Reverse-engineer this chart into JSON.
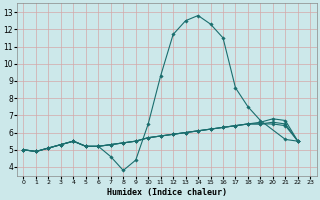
{
  "xlabel": "Humidex (Indice chaleur)",
  "bg_color": "#cce8ea",
  "grid_color_major": "#d4a0a0",
  "grid_color_minor": "#d4c0c0",
  "line_color": "#1a6e6e",
  "x_ticks": [
    0,
    1,
    2,
    3,
    4,
    5,
    6,
    7,
    8,
    9,
    10,
    11,
    12,
    13,
    14,
    15,
    16,
    17,
    18,
    19,
    20,
    21,
    22,
    23
  ],
  "y_ticks": [
    4,
    5,
    6,
    7,
    8,
    9,
    10,
    11,
    12,
    13
  ],
  "xlim": [
    -0.5,
    23.5
  ],
  "ylim": [
    3.5,
    13.5
  ],
  "series": [
    {
      "x": [
        0,
        1,
        2,
        3,
        4,
        5,
        6,
        7,
        8,
        9,
        10,
        11,
        12,
        13,
        14,
        15,
        16,
        17,
        18,
        19,
        21,
        22
      ],
      "y": [
        5.0,
        4.9,
        5.1,
        5.3,
        5.5,
        5.2,
        5.2,
        4.6,
        3.8,
        4.4,
        6.5,
        9.3,
        11.7,
        12.5,
        12.8,
        12.3,
        11.5,
        8.6,
        7.5,
        6.7,
        5.6,
        5.5
      ]
    },
    {
      "x": [
        0,
        1,
        2,
        3,
        4,
        5,
        6,
        7,
        8,
        9,
        10,
        11,
        12,
        13,
        14,
        15,
        16,
        17,
        18,
        19,
        20,
        21,
        22
      ],
      "y": [
        5.0,
        4.9,
        5.1,
        5.3,
        5.5,
        5.2,
        5.2,
        5.3,
        5.4,
        5.5,
        5.7,
        5.8,
        5.9,
        6.0,
        6.1,
        6.2,
        6.3,
        6.4,
        6.5,
        6.6,
        6.8,
        6.7,
        5.5
      ]
    },
    {
      "x": [
        0,
        1,
        2,
        3,
        4,
        5,
        6,
        7,
        8,
        9,
        10,
        11,
        12,
        13,
        14,
        15,
        16,
        17,
        18,
        19,
        20,
        21,
        22
      ],
      "y": [
        5.0,
        4.9,
        5.1,
        5.3,
        5.5,
        5.2,
        5.2,
        5.3,
        5.4,
        5.5,
        5.7,
        5.8,
        5.9,
        6.0,
        6.1,
        6.2,
        6.3,
        6.4,
        6.5,
        6.5,
        6.6,
        6.5,
        5.5
      ]
    },
    {
      "x": [
        0,
        1,
        2,
        3,
        4,
        5,
        6,
        7,
        8,
        9,
        10,
        11,
        12,
        13,
        14,
        15,
        16,
        17,
        18,
        19,
        20,
        21,
        22
      ],
      "y": [
        5.0,
        4.9,
        5.1,
        5.3,
        5.5,
        5.2,
        5.2,
        5.3,
        5.4,
        5.5,
        5.7,
        5.8,
        5.9,
        6.0,
        6.1,
        6.2,
        6.3,
        6.4,
        6.5,
        6.5,
        6.5,
        6.4,
        5.5
      ]
    }
  ]
}
